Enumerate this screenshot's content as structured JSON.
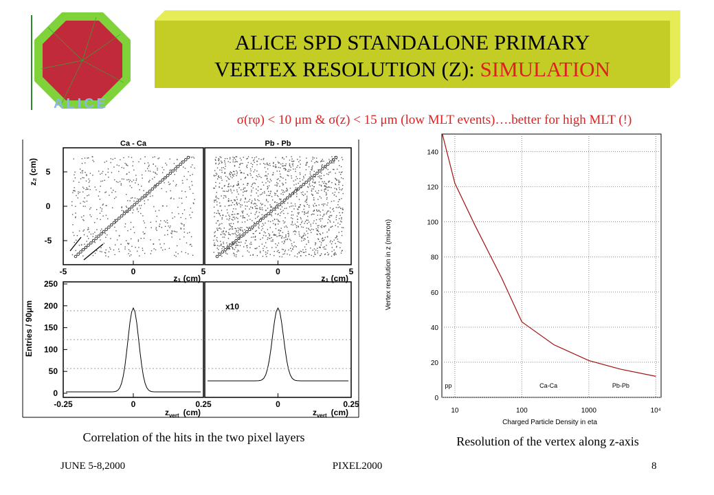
{
  "logo": "ALICE",
  "title": {
    "line1": "ALICE SPD STANDALONE PRIMARY",
    "line2": "VERTEX RESOLUTION (Z): ",
    "highlight": "SIMULATION"
  },
  "subtitle": "σ(rφ) < 10 μm & σ(z) < 15 μm (low MLT events)….better for high MLT (!)",
  "left_figure": {
    "panels": [
      "Ca - Ca",
      "Pb - Pb"
    ],
    "top_y_label": "z₂ (cm)",
    "top_x_label": "z₁ (cm)",
    "bottom_y_label": "Entries / 90μm",
    "bottom_x_label": {
      "main": "z",
      "sub": "vert",
      "unit": "(cm)"
    },
    "scale_note": "x10",
    "top_yticks": [
      5,
      0,
      -5
    ],
    "top_xticks": [
      -5,
      0,
      5
    ],
    "bottom_yticks": [
      250,
      200,
      150,
      100,
      50,
      0
    ],
    "bottom_xticks": [
      -0.25,
      0,
      0.25
    ],
    "caption": "Correlation of the hits in the two pixel layers"
  },
  "resolution_chart": {
    "type": "line",
    "x_label": "Charged Particle Density in eta",
    "y_label": "Vertex resolution in z (micron)",
    "x": [
      6.5,
      10,
      20,
      50,
      100,
      300,
      1000,
      3000,
      10000
    ],
    "values": [
      150,
      122,
      98,
      68,
      43,
      30,
      21,
      16,
      12
    ],
    "color": "#a01010",
    "log_x": true,
    "grid": true,
    "xlim": [
      6.4,
      12000
    ],
    "ylim": [
      0,
      150
    ],
    "xticks": [
      10,
      100,
      1000,
      {
        "value": 10000,
        "label": "10⁴"
      }
    ],
    "yticks": [
      0,
      20,
      40,
      60,
      80,
      100,
      120,
      140
    ],
    "annotations": [
      {
        "text": "pp",
        "x": 8
      },
      {
        "text": "Ca-Ca",
        "x": 250
      },
      {
        "text": "Pb-Pb",
        "x": 3000
      }
    ],
    "caption": "Resolution of the vertex along z-axis"
  },
  "footer": {
    "date": "JUNE 5-8,2000",
    "event": "PIXEL2000",
    "page": "8"
  }
}
